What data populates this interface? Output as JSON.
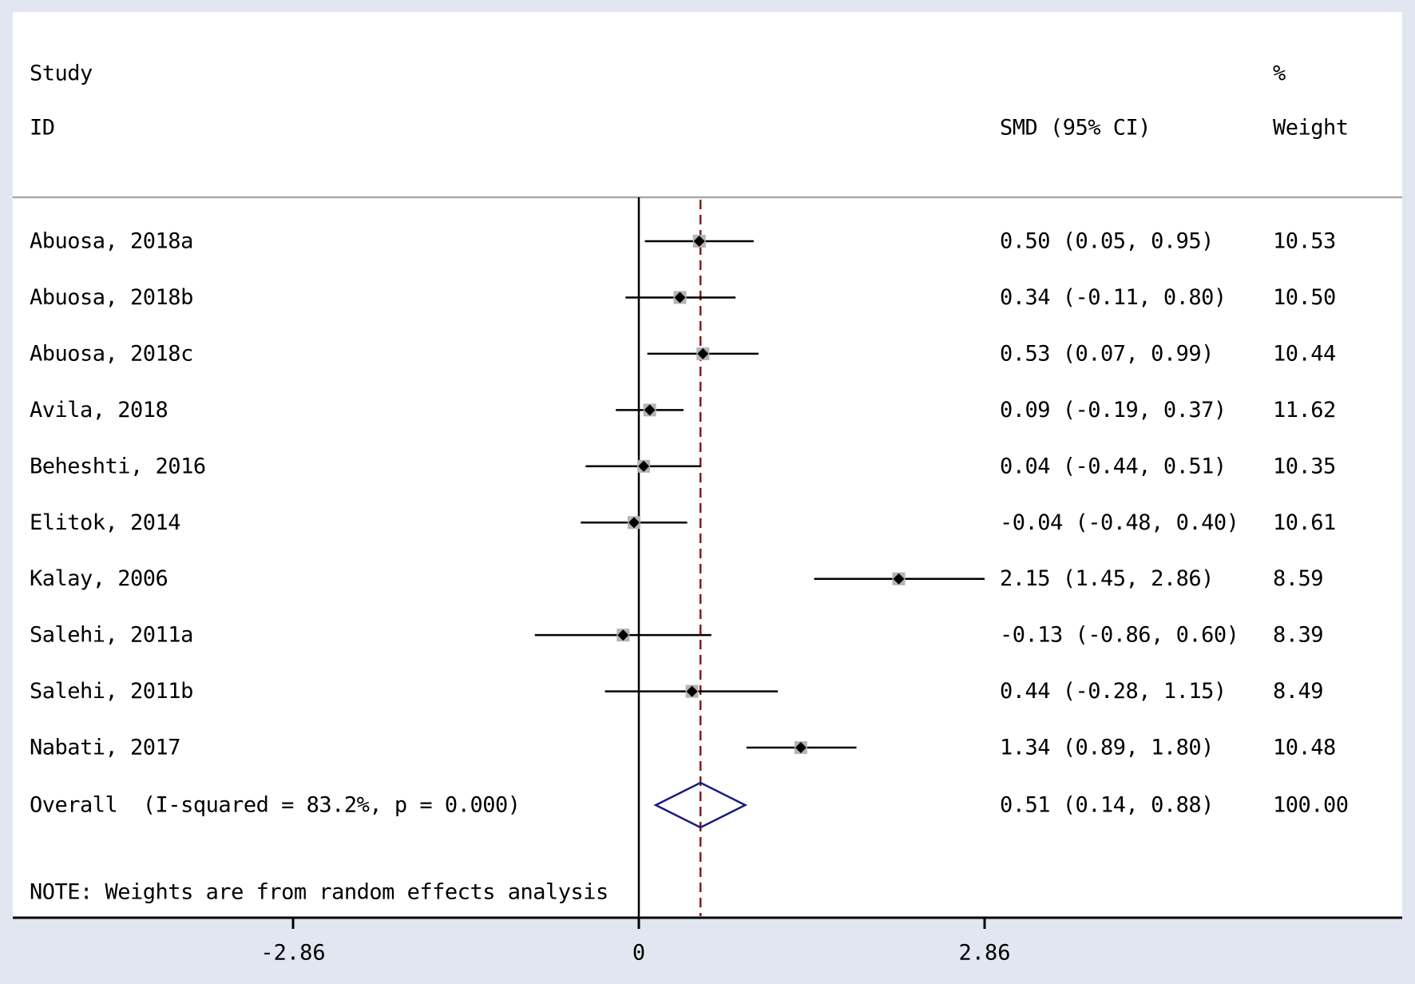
{
  "header": {
    "study_label": "Study",
    "id_label": "ID",
    "effect_header": "SMD (95% CI)",
    "weight_header_line1": "%",
    "weight_header_line2": "Weight"
  },
  "note": "NOTE: Weights are from random effects analysis",
  "colors": {
    "background": "#e1e6f0",
    "panel": "#ffffff",
    "ci_line": "#000000",
    "point": "#000000",
    "weight_box": "#b4b4b4",
    "overall_line": "#8b1a1a",
    "diamond": "#1a1a80",
    "divider": "#a0a0a0"
  },
  "chart_data": {
    "type": "forest",
    "title": "",
    "xlabel": "",
    "ylabel": "",
    "measure": "SMD (95% CI)",
    "null_value": 0,
    "xlim": [
      -4.55,
      6.35
    ],
    "xticks": [
      -2.86,
      0,
      2.86
    ],
    "xtick_labels": [
      "-2.86",
      "0",
      "2.86"
    ],
    "grid": false,
    "studies": [
      {
        "id": "Abuosa, 2018a",
        "smd": 0.5,
        "lower": 0.05,
        "upper": 0.95,
        "ci_text": "0.50 (0.05, 0.95)",
        "weight": "10.53"
      },
      {
        "id": "Abuosa, 2018b",
        "smd": 0.34,
        "lower": -0.11,
        "upper": 0.8,
        "ci_text": "0.34 (-0.11, 0.80)",
        "weight": "10.50"
      },
      {
        "id": "Abuosa, 2018c",
        "smd": 0.53,
        "lower": 0.07,
        "upper": 0.99,
        "ci_text": "0.53 (0.07, 0.99)",
        "weight": "10.44"
      },
      {
        "id": "Avila, 2018",
        "smd": 0.09,
        "lower": -0.19,
        "upper": 0.37,
        "ci_text": "0.09 (-0.19, 0.37)",
        "weight": "11.62"
      },
      {
        "id": "Beheshti, 2016",
        "smd": 0.04,
        "lower": -0.44,
        "upper": 0.51,
        "ci_text": "0.04 (-0.44, 0.51)",
        "weight": "10.35"
      },
      {
        "id": "Elitok, 2014",
        "smd": -0.04,
        "lower": -0.48,
        "upper": 0.4,
        "ci_text": "-0.04 (-0.48, 0.40)",
        "weight": "10.61"
      },
      {
        "id": "Kalay, 2006",
        "smd": 2.15,
        "lower": 1.45,
        "upper": 2.86,
        "ci_text": "2.15 (1.45, 2.86)",
        "weight": "8.59"
      },
      {
        "id": "Salehi, 2011a",
        "smd": -0.13,
        "lower": -0.86,
        "upper": 0.6,
        "ci_text": "-0.13 (-0.86, 0.60)",
        "weight": "8.39"
      },
      {
        "id": "Salehi, 2011b",
        "smd": 0.44,
        "lower": -0.28,
        "upper": 1.15,
        "ci_text": "0.44 (-0.28, 1.15)",
        "weight": "8.49"
      },
      {
        "id": "Nabati, 2017",
        "smd": 1.34,
        "lower": 0.89,
        "upper": 1.8,
        "ci_text": "1.34 (0.89, 1.80)",
        "weight": "10.48"
      }
    ],
    "overall": {
      "id": "Overall  (I-squared = 83.2%, p = 0.000)",
      "smd": 0.51,
      "lower": 0.14,
      "upper": 0.88,
      "ci_text": "0.51 (0.14, 0.88)",
      "weight": "100.00",
      "i_squared": "83.2%",
      "p_value": "0.000"
    }
  }
}
